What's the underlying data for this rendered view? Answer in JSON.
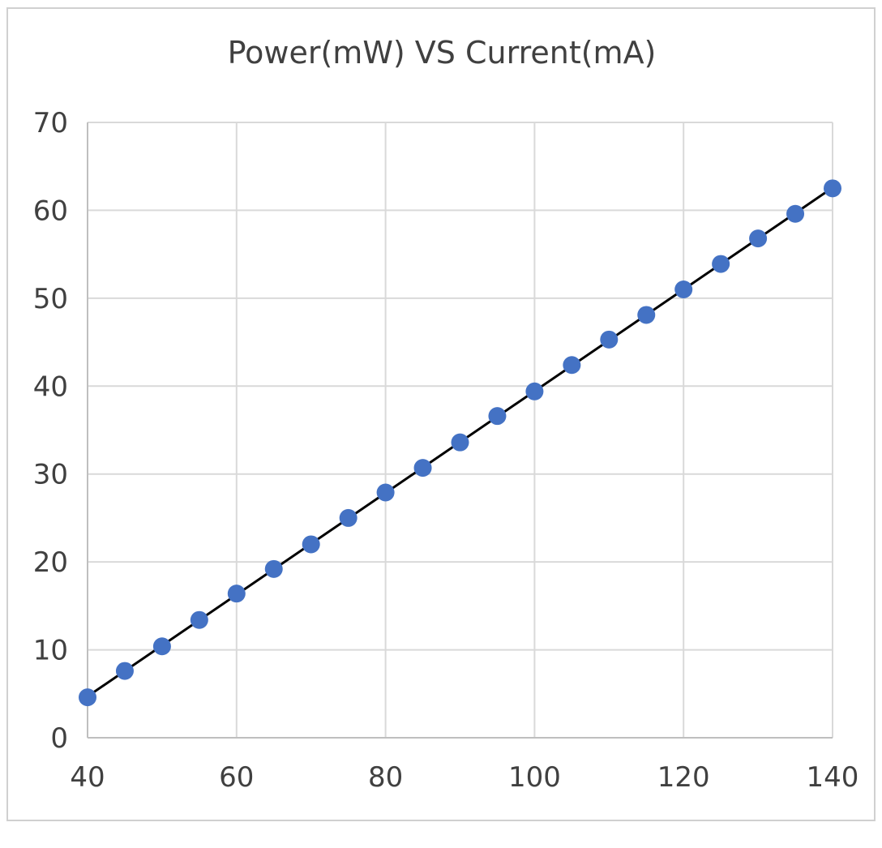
{
  "chart_data": {
    "type": "scatter",
    "title": "Power(mW) VS Current(mA)",
    "xlabel": "",
    "ylabel": "",
    "xlim": [
      40,
      140
    ],
    "ylim": [
      0,
      70
    ],
    "xticks": [
      "40",
      "60",
      "80",
      "100",
      "120",
      "140"
    ],
    "yticks": [
      "0",
      "10",
      "20",
      "30",
      "40",
      "50",
      "60",
      "70"
    ],
    "grid": true,
    "trendline": "linear",
    "colors": {
      "marker": "#4472C4",
      "trendline": "#000000",
      "grid": "#d9d9d9",
      "text": "#404040"
    },
    "series": [
      {
        "x": [
          40,
          45,
          50,
          55,
          60,
          65,
          70,
          75,
          80,
          85,
          90,
          95,
          100,
          105,
          110,
          115,
          120,
          125,
          130,
          135,
          140
        ],
        "y": [
          4.6,
          7.6,
          10.4,
          13.4,
          16.4,
          19.2,
          22.0,
          25.0,
          27.9,
          30.7,
          33.6,
          36.6,
          39.4,
          42.4,
          45.3,
          48.1,
          51.0,
          53.9,
          56.8,
          59.6,
          62.5
        ]
      }
    ]
  }
}
